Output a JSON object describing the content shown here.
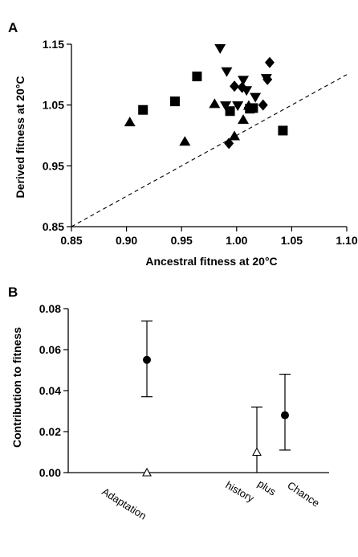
{
  "chart_data": [
    {
      "panel": "A",
      "type": "scatter",
      "xlabel": "Ancestral fitness at 20°C",
      "ylabel": "Derived fitness at 20°C",
      "xlim": [
        0.85,
        1.1
      ],
      "ylim": [
        0.85,
        1.15
      ],
      "xticks": [
        "0.85",
        "0.90",
        "0.95",
        "1.00",
        "1.05",
        "1.10"
      ],
      "yticks": [
        "0.85",
        "0.95",
        "1.05",
        "1.15"
      ],
      "grid": false,
      "reference_line": {
        "style": "dashed",
        "equation": "y = x"
      },
      "series": [
        {
          "marker": "square",
          "points": [
            [
              0.915,
              1.042
            ],
            [
              0.944,
              1.056
            ],
            [
              0.964,
              1.097
            ],
            [
              0.994,
              1.04
            ],
            [
              1.012,
              1.044
            ],
            [
              1.015,
              1.045
            ],
            [
              1.042,
              1.008
            ]
          ]
        },
        {
          "marker": "triangle-down",
          "points": [
            [
              0.985,
              1.142
            ],
            [
              0.991,
              1.104
            ],
            [
              0.99,
              1.048
            ],
            [
              1.001,
              1.048
            ],
            [
              1.006,
              1.09
            ],
            [
              1.009,
              1.073
            ],
            [
              1.017,
              1.062
            ],
            [
              1.027,
              1.093
            ]
          ]
        },
        {
          "marker": "triangle-up",
          "points": [
            [
              0.903,
              1.023
            ],
            [
              0.953,
              0.991
            ],
            [
              0.98,
              1.053
            ],
            [
              0.998,
              1.0
            ],
            [
              1.006,
              1.027
            ],
            [
              1.011,
              1.05
            ]
          ]
        },
        {
          "marker": "diamond",
          "points": [
            [
              0.993,
              0.987
            ],
            [
              0.998,
              1.081
            ],
            [
              1.005,
              1.079
            ],
            [
              1.011,
              1.046
            ],
            [
              1.024,
              1.05
            ],
            [
              1.028,
              1.092
            ],
            [
              1.03,
              1.12
            ]
          ]
        }
      ]
    },
    {
      "panel": "B",
      "type": "scatter",
      "ylabel": "Contribution to fitness",
      "ylim": [
        0,
        0.08
      ],
      "yticks": [
        "0.00",
        "0.02",
        "0.04",
        "0.06",
        "0.08"
      ],
      "categories": [
        "Adaptation",
        "history",
        "plus",
        "Chance"
      ],
      "grid": false,
      "series": [
        {
          "marker": "filled-circle",
          "points": [
            {
              "x": "Adaptation",
              "y": 0.055,
              "low": 0.037,
              "high": 0.074
            },
            {
              "x": "plus",
              "y": 0.028,
              "low": 0.011,
              "high": 0.048
            }
          ]
        },
        {
          "marker": "open-triangle",
          "points": [
            {
              "x": "Adaptation",
              "y": 0.0
            },
            {
              "x": "history",
              "y": 0.01,
              "low": 0.0,
              "high": 0.032
            }
          ]
        }
      ]
    }
  ]
}
